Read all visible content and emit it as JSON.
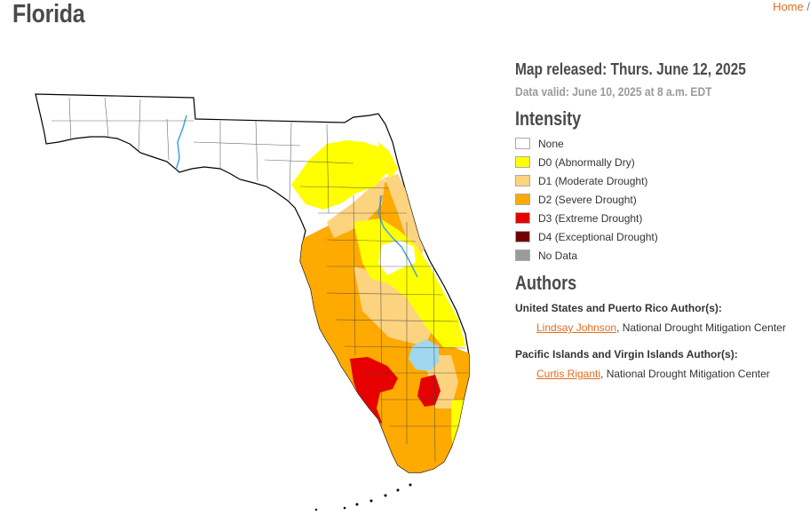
{
  "page": {
    "title": "Florida",
    "breadcrumb": [
      "Home",
      "/"
    ]
  },
  "map": {
    "released": "Map released: Thurs. June 12, 2025",
    "valid": "Data valid: June 10, 2025 at 8 a.m. EDT"
  },
  "legend": {
    "title": "Intensity",
    "items": [
      {
        "code": "",
        "label": "None",
        "color": "#ffffff"
      },
      {
        "code": "D0",
        "label": "(Abnormally Dry)",
        "color": "#ffff00"
      },
      {
        "code": "D1",
        "label": "(Moderate Drought)",
        "color": "#fcd37f"
      },
      {
        "code": "D2",
        "label": "(Severe Drought)",
        "color": "#ffaa00"
      },
      {
        "code": "D3",
        "label": "(Extreme Drought)",
        "color": "#e60000"
      },
      {
        "code": "D4",
        "label": "(Exceptional Drought)",
        "color": "#730000"
      },
      {
        "code": "",
        "label": "No Data",
        "color": "#9b9b9b"
      }
    ]
  },
  "authors": {
    "title": "Authors",
    "groups": [
      {
        "heading": "United States and Puerto Rico Author(s):",
        "name": "Lindsay Johnson",
        "org": ", National Drought Mitigation Center"
      },
      {
        "heading": "Pacific Islands and Virgin Islands Author(s):",
        "name": "Curtis Riganti",
        "org": ", National Drought Mitigation Center"
      }
    ]
  },
  "colors": {
    "accent": "#e06c1f",
    "lake": "#9fd7ef",
    "river": "#4aa8e0"
  }
}
